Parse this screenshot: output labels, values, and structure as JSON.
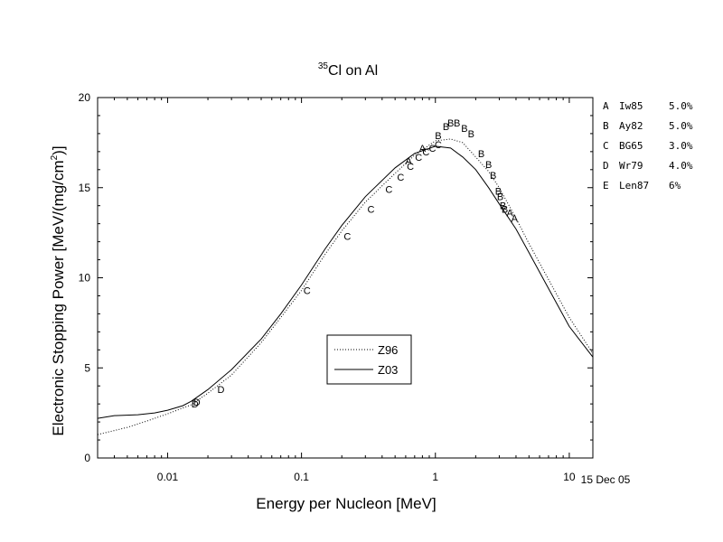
{
  "chart_data": {
    "type": "line",
    "title": {
      "superscript": "35",
      "text": "Cl on Al"
    },
    "xlabel": "Energy per Nucleon [MeV]",
    "ylabel": {
      "main": "Electronic Stopping Power [MeV/(mg/cm",
      "sup": "2",
      "end": ")]"
    },
    "x_scale": "log",
    "xlim": [
      0.003,
      15
    ],
    "ylim": [
      0,
      20
    ],
    "x_ticks": [
      {
        "value": 0.01,
        "label": "0.01"
      },
      {
        "value": 0.1,
        "label": "0.1"
      },
      {
        "value": 1,
        "label": "1"
      },
      {
        "value": 10,
        "label": "10"
      }
    ],
    "y_ticks": [
      {
        "value": 0,
        "label": "0"
      },
      {
        "value": 5,
        "label": "5"
      },
      {
        "value": 10,
        "label": "10"
      },
      {
        "value": 15,
        "label": "15"
      },
      {
        "value": 20,
        "label": "20"
      }
    ],
    "date_label": "15 Dec 05",
    "series": [
      {
        "name": "Z96",
        "style": "dotted",
        "x": [
          0.003,
          0.005,
          0.007,
          0.01,
          0.015,
          0.02,
          0.03,
          0.05,
          0.07,
          0.1,
          0.15,
          0.2,
          0.3,
          0.5,
          0.7,
          1.0,
          1.3,
          1.6,
          2.0,
          2.5,
          3.0,
          4.0,
          5.0,
          7.0,
          10.0,
          15.0
        ],
        "y": [
          1.3,
          1.7,
          2.05,
          2.45,
          2.95,
          3.6,
          4.6,
          6.4,
          7.8,
          9.3,
          11.3,
          12.6,
          14.2,
          15.8,
          16.8,
          17.6,
          17.7,
          17.5,
          16.7,
          15.9,
          15.0,
          13.3,
          11.9,
          9.9,
          7.8,
          5.8
        ]
      },
      {
        "name": "Z03",
        "style": "solid",
        "x": [
          0.003,
          0.004,
          0.006,
          0.008,
          0.01,
          0.013,
          0.015,
          0.02,
          0.03,
          0.05,
          0.07,
          0.1,
          0.15,
          0.2,
          0.3,
          0.5,
          0.7,
          1.0,
          1.3,
          1.6,
          2.0,
          2.5,
          3.0,
          4.0,
          5.0,
          7.0,
          10.0,
          15.0
        ],
        "y": [
          2.2,
          2.35,
          2.4,
          2.5,
          2.65,
          2.9,
          3.15,
          3.8,
          4.9,
          6.6,
          8.0,
          9.6,
          11.6,
          12.9,
          14.5,
          16.1,
          16.9,
          17.3,
          17.2,
          16.7,
          16.0,
          15.0,
          14.1,
          12.7,
          11.4,
          9.4,
          7.3,
          5.6
        ]
      }
    ],
    "points": [
      {
        "label": "D",
        "x": 0.016,
        "y": 3.0
      },
      {
        "label": "D",
        "x": 0.0165,
        "y": 3.1
      },
      {
        "label": "D",
        "x": 0.025,
        "y": 3.8
      },
      {
        "label": "C",
        "x": 0.11,
        "y": 9.3
      },
      {
        "label": "C",
        "x": 0.22,
        "y": 12.3
      },
      {
        "label": "C",
        "x": 0.33,
        "y": 13.8
      },
      {
        "label": "C",
        "x": 0.45,
        "y": 14.9
      },
      {
        "label": "C",
        "x": 0.55,
        "y": 15.6
      },
      {
        "label": "C",
        "x": 0.65,
        "y": 16.2
      },
      {
        "label": "C",
        "x": 0.75,
        "y": 16.7
      },
      {
        "label": "C",
        "x": 0.85,
        "y": 17.0
      },
      {
        "label": "C",
        "x": 0.95,
        "y": 17.2
      },
      {
        "label": "C",
        "x": 1.05,
        "y": 17.4
      },
      {
        "label": "A",
        "x": 0.63,
        "y": 16.5
      },
      {
        "label": "A",
        "x": 0.8,
        "y": 17.2
      },
      {
        "label": "A",
        "x": 3.6,
        "y": 13.6
      },
      {
        "label": "A",
        "x": 3.9,
        "y": 13.3
      },
      {
        "label": "B",
        "x": 1.05,
        "y": 17.9
      },
      {
        "label": "B",
        "x": 1.2,
        "y": 18.4
      },
      {
        "label": "B",
        "x": 1.3,
        "y": 18.6
      },
      {
        "label": "B",
        "x": 1.45,
        "y": 18.6
      },
      {
        "label": "B",
        "x": 1.65,
        "y": 18.3
      },
      {
        "label": "B",
        "x": 1.85,
        "y": 18.0
      },
      {
        "label": "B",
        "x": 2.2,
        "y": 16.9
      },
      {
        "label": "B",
        "x": 2.5,
        "y": 16.3
      },
      {
        "label": "B",
        "x": 2.7,
        "y": 15.7
      },
      {
        "label": "B",
        "x": 2.95,
        "y": 14.8
      },
      {
        "label": "B",
        "x": 3.05,
        "y": 14.5
      },
      {
        "label": "B",
        "x": 3.2,
        "y": 14.0
      },
      {
        "label": "B",
        "x": 3.3,
        "y": 13.8
      }
    ],
    "references": [
      {
        "letter": "A",
        "name": "Iw85",
        "error": "5.0%"
      },
      {
        "letter": "B",
        "name": "Ay82",
        "error": "5.0%"
      },
      {
        "letter": "C",
        "name": "BG65",
        "error": "3.0%"
      },
      {
        "letter": "D",
        "name": "Wr79",
        "error": "4.0%"
      },
      {
        "letter": "E",
        "name": "Len87",
        "error": "6%"
      }
    ],
    "legend": {
      "position": "center-bottom",
      "entries": [
        {
          "label": "Z96",
          "style": "dotted"
        },
        {
          "label": "Z03",
          "style": "solid"
        }
      ]
    },
    "grid": false
  }
}
